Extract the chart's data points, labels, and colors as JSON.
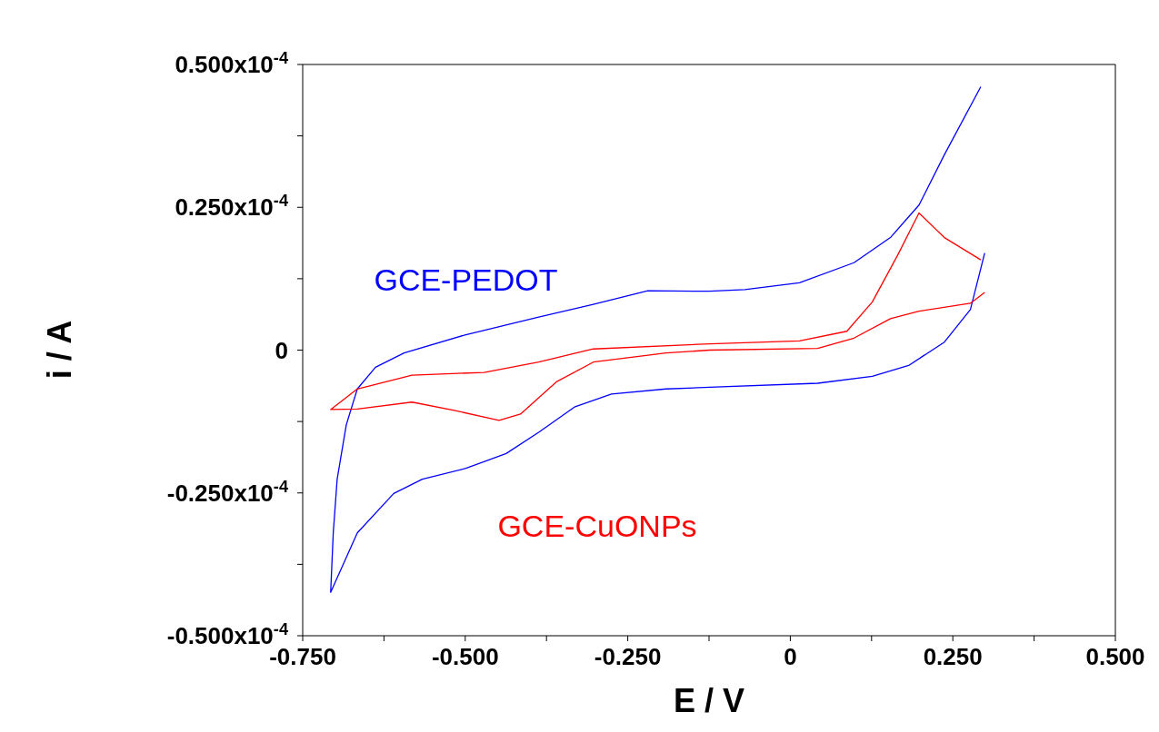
{
  "chart_data": {
    "type": "line",
    "xlabel": "E / V",
    "ylabel": "i / A",
    "xlim": [
      -0.75,
      0.5
    ],
    "xticks": [
      {
        "value": -0.75,
        "label": "-0.750"
      },
      {
        "value": -0.625,
        "label": null
      },
      {
        "value": -0.5,
        "label": "-0.500"
      },
      {
        "value": -0.375,
        "label": null
      },
      {
        "value": -0.25,
        "label": "-0.250"
      },
      {
        "value": -0.125,
        "label": null
      },
      0,
      {
        "value": 0.125,
        "label": null
      },
      {
        "value": 0.25,
        "label": "0.250"
      },
      {
        "value": 0.375,
        "label": null
      },
      {
        "value": 0.5,
        "label": "0.500"
      }
    ],
    "ylim": [
      -5e-05,
      5e-05
    ],
    "yticks": [
      {
        "value": -5e-05,
        "label": "-0.500x10$^{-4}$"
      },
      {
        "value": -3.75e-05,
        "label": null
      },
      {
        "value": -2.5e-05,
        "label": "-0.250x10$^{-4}$"
      },
      {
        "value": -1.25e-05,
        "label": null
      },
      0,
      {
        "value": 1.25e-05,
        "label": null
      },
      {
        "value": 2.5e-05,
        "label": "0.250x10$^{-4}$"
      },
      {
        "value": 3.75e-05,
        "label": null
      },
      {
        "value": 5e-05,
        "label": "0.500x10$^{-4}$"
      }
    ],
    "series": [
      {
        "name": "GCE-PEDOT",
        "color": "#0000ff",
        "x": [
          0.293,
          0.237,
          0.198,
          0.154,
          0.098,
          0.014,
          -0.07,
          -0.124,
          -0.219,
          -0.303,
          -0.387,
          -0.499,
          -0.594,
          -0.638,
          -0.666,
          -0.683,
          -0.697,
          -0.703,
          -0.707,
          -0.666,
          -0.61,
          -0.566,
          -0.499,
          -0.437,
          -0.387,
          -0.331,
          -0.275,
          -0.191,
          -0.124,
          0.042,
          0.126,
          0.182,
          0.237,
          0.277,
          0.299
        ],
        "values": [
          4.61e-05,
          3.42e-05,
          2.54e-05,
          1.97e-05,
          1.53e-05,
          1.18e-05,
          1.06e-05,
          1.03e-05,
          1.04e-05,
          8e-06,
          5.8e-06,
          2.7e-06,
          -5e-07,
          -3e-06,
          -6.8e-06,
          -1.31e-05,
          -2.26e-05,
          -3.2e-05,
          -4.24e-05,
          -3.2e-05,
          -2.51e-05,
          -2.26e-05,
          -2.07e-05,
          -1.81e-05,
          -1.44e-05,
          -9.9e-06,
          -7.7e-06,
          -6.8e-06,
          -6.5e-06,
          -5.8e-06,
          -4.6e-06,
          -2.7e-06,
          1.4e-06,
          7.1e-06,
          1.7e-05
        ]
      },
      {
        "name": "GCE-CuONPs",
        "color": "#ff0000",
        "x": [
          0.293,
          0.237,
          0.198,
          0.165,
          0.126,
          0.087,
          0.014,
          -0.124,
          -0.303,
          -0.387,
          -0.471,
          -0.582,
          -0.666,
          -0.707,
          -0.666,
          -0.582,
          -0.515,
          -0.448,
          -0.415,
          -0.359,
          -0.303,
          -0.191,
          -0.124,
          0.042,
          0.098,
          0.154,
          0.198,
          0.277,
          0.299
        ],
        "values": [
          1.58e-05,
          1.97e-05,
          2.4e-05,
          1.66e-05,
          8.4e-06,
          3.3e-06,
          1.6e-06,
          1.1e-06,
          2e-07,
          -2.1e-06,
          -3.9e-06,
          -4.4e-06,
          -6.8e-06,
          -1.04e-05,
          -1.03e-05,
          -9.1e-06,
          -1.06e-05,
          -1.23e-05,
          -1.12e-05,
          -5.5e-06,
          -2.1e-06,
          -5e-07,
          0,
          3e-07,
          2.1e-06,
          5.5e-06,
          6.8e-06,
          8.2e-06,
          1.01e-05
        ]
      }
    ]
  }
}
